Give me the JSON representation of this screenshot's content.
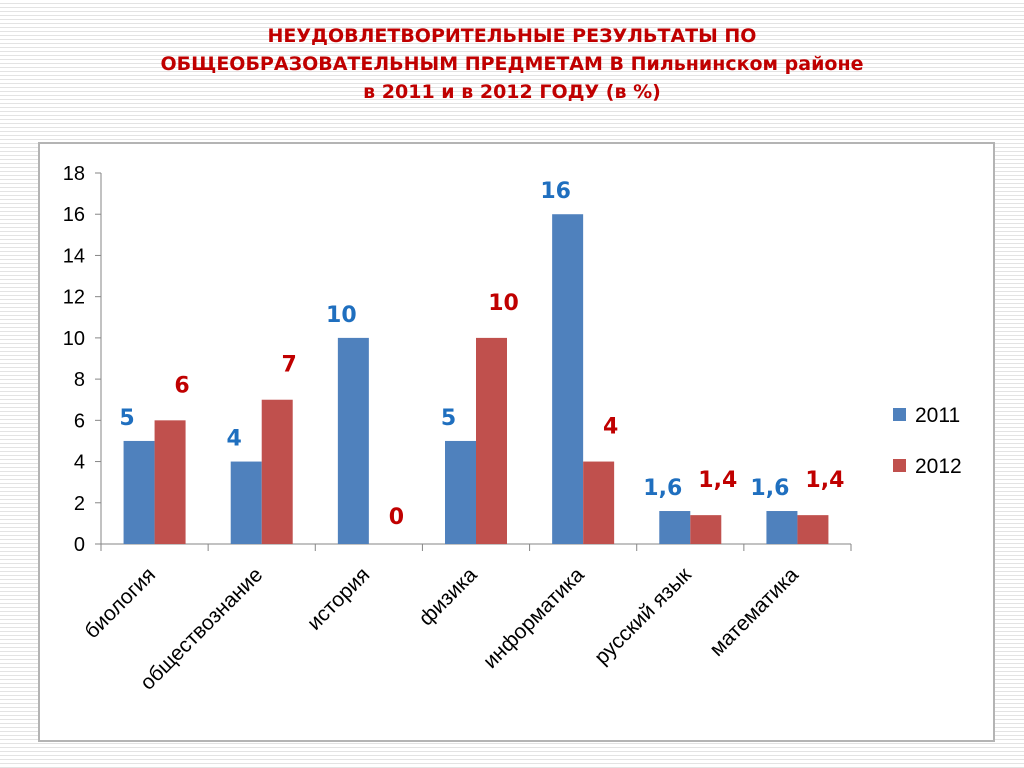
{
  "title": {
    "line1": "НЕУДОВЛЕТВОРИТЕЛЬНЫЕ РЕЗУЛЬТАТЫ ПО",
    "line2": "ОБЩЕОБРАЗОВАТЕЛЬНЫМ ПРЕДМЕТАМ В Пильнинском районе",
    "line3": "в 2011 и в 2012 ГОДУ (в %)"
  },
  "chart_data": {
    "type": "bar",
    "title": "НЕУДОВЛЕТВОРИТЕЛЬНЫЕ РЕЗУЛЬТАТЫ ПО ОБЩЕОБРАЗОВАТЕЛЬНЫМ ПРЕДМЕТАМ В Пильнинском районе в 2011 и в 2012 ГОДУ (в %)",
    "categories": [
      "биология",
      "обществознание",
      "история",
      "физика",
      "информатика",
      "русский язык",
      "математика"
    ],
    "series": [
      {
        "name": "2011",
        "values": [
          5,
          4,
          10,
          5,
          16,
          1.6,
          1.6
        ],
        "labels": [
          "5",
          "4",
          "10",
          "5",
          "16",
          "1,6",
          "1,6"
        ],
        "color": "#4f81bd",
        "label_color": "#1f6fbf"
      },
      {
        "name": "2012",
        "values": [
          6,
          7,
          0,
          10,
          4,
          1.4,
          1.4
        ],
        "labels": [
          "6",
          "7",
          "0",
          "10",
          "4",
          "1,4",
          "1,4"
        ],
        "color": "#c0504d",
        "label_color": "#c00000"
      }
    ],
    "yticks": [
      "0",
      "2",
      "4",
      "6",
      "8",
      "10",
      "12",
      "14",
      "16",
      "18"
    ],
    "ylim": [
      0,
      18
    ],
    "grid": false,
    "legend": "right"
  }
}
